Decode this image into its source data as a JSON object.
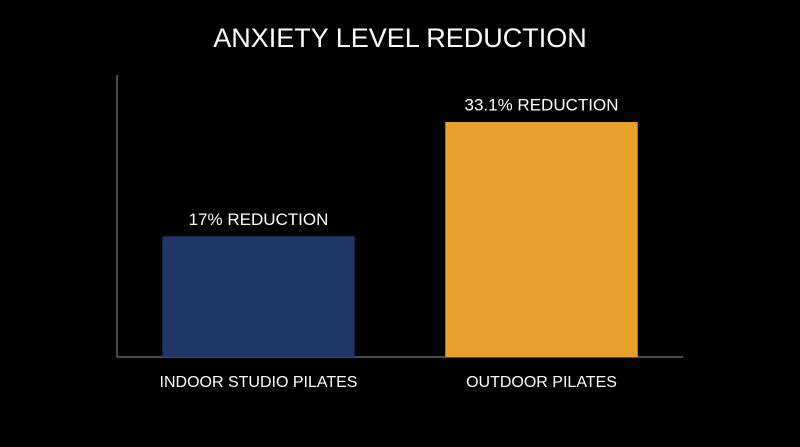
{
  "chart_data": {
    "type": "bar",
    "title": "ANXIETY LEVEL REDUCTION",
    "categories": [
      "INDOOR STUDIO PILATES",
      "OUTDOOR PILATES"
    ],
    "values": [
      17,
      33.1
    ],
    "value_labels": [
      "17% REDUCTION",
      "33.1% REDUCTION"
    ],
    "colors": [
      "#1f3566",
      "#e8a22c"
    ],
    "ylim": [
      0,
      40
    ]
  }
}
